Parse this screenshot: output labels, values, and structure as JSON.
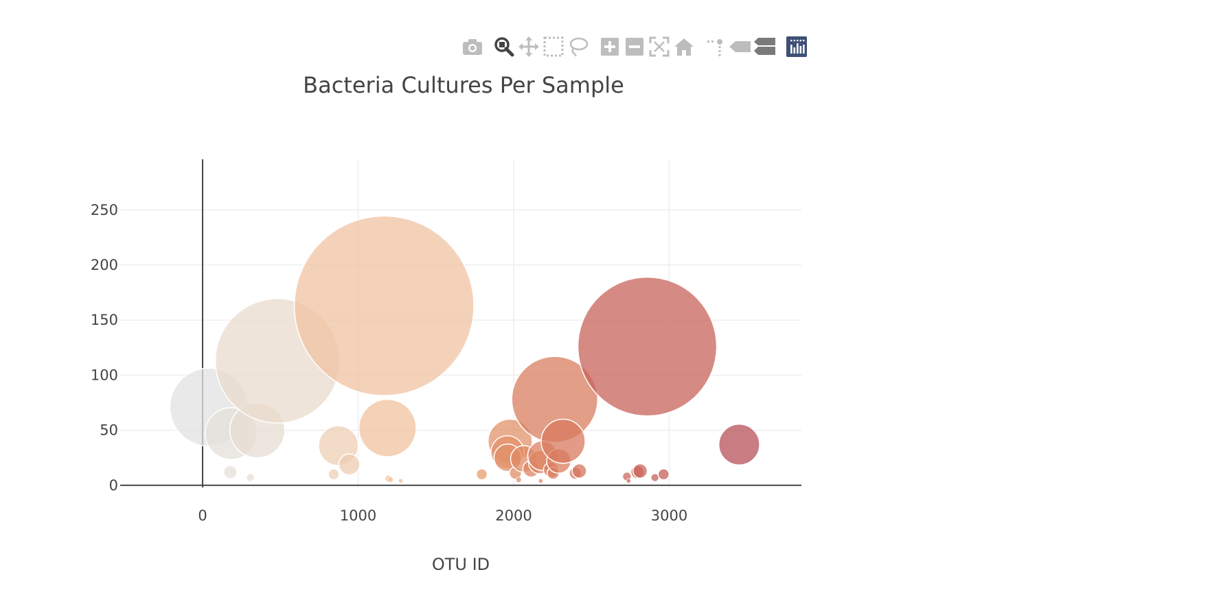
{
  "modebar": {
    "buttons": [
      {
        "name": "camera-icon",
        "label": "Download plot as a png"
      },
      {
        "name": "zoom-icon",
        "label": "Zoom"
      },
      {
        "name": "pan-icon",
        "label": "Pan"
      },
      {
        "name": "box-select-icon",
        "label": "Box Select"
      },
      {
        "name": "lasso-select-icon",
        "label": "Lasso Select"
      },
      {
        "name": "zoom-in-icon",
        "label": "Zoom in"
      },
      {
        "name": "zoom-out-icon",
        "label": "Zoom out"
      },
      {
        "name": "autoscale-icon",
        "label": "Autoscale"
      },
      {
        "name": "reset-axes-icon",
        "label": "Reset axes"
      },
      {
        "name": "spike-lines-icon",
        "label": "Toggle Spike Lines"
      },
      {
        "name": "hover-closest-icon",
        "label": "Show closest data on hover"
      },
      {
        "name": "hover-compare-icon",
        "label": "Compare data on hover"
      },
      {
        "name": "plotly-logo-icon",
        "label": "Produced with Plotly"
      }
    ],
    "colors": {
      "inactive": "#bdbdbd",
      "active": "#444444",
      "logo": "#3f4f75"
    }
  },
  "chart_data": {
    "type": "scatter",
    "subtype": "bubble",
    "title": "Bacteria Cultures Per Sample",
    "xlabel": "OTU ID",
    "ylabel": "",
    "xlim": [
      -530,
      3850
    ],
    "ylim": [
      -2,
      296
    ],
    "xticks": [
      0,
      1000,
      2000,
      3000
    ],
    "xtick_labels": [
      "0",
      "1000",
      "2000",
      "3000"
    ],
    "yticks": [
      0,
      50,
      100,
      150,
      200,
      250
    ],
    "ytick_labels": [
      "0",
      "50",
      "100",
      "150",
      "200",
      "250"
    ],
    "grid": true,
    "legend": "none",
    "colorscale": "Earth",
    "colorscale_stops": [
      "#e2e2e2",
      "#ecd9c6",
      "#f0c3a0",
      "#e8a070",
      "#d87a5e",
      "#c7625b",
      "#b8505a"
    ],
    "marker_opacity": 0.75,
    "marker_line_color": "#ffffff",
    "points": [
      {
        "x": 41,
        "y": 71
      },
      {
        "x": 178,
        "y": 12
      },
      {
        "x": 183,
        "y": 47
      },
      {
        "x": 307,
        "y": 7
      },
      {
        "x": 352,
        "y": 50
      },
      {
        "x": 482,
        "y": 113
      },
      {
        "x": 843,
        "y": 10
      },
      {
        "x": 873,
        "y": 36
      },
      {
        "x": 943,
        "y": 19
      },
      {
        "x": 1167,
        "y": 163
      },
      {
        "x": 1189,
        "y": 52
      },
      {
        "x": 1195,
        "y": 6
      },
      {
        "x": 1208,
        "y": 5
      },
      {
        "x": 1274,
        "y": 4
      },
      {
        "x": 1795,
        "y": 10
      },
      {
        "x": 1977,
        "y": 40
      },
      {
        "x": 1960,
        "y": 30
      },
      {
        "x": 1962,
        "y": 25
      },
      {
        "x": 2011,
        "y": 11
      },
      {
        "x": 2032,
        "y": 5
      },
      {
        "x": 2065,
        "y": 24
      },
      {
        "x": 2112,
        "y": 15
      },
      {
        "x": 2169,
        "y": 21
      },
      {
        "x": 2186,
        "y": 27
      },
      {
        "x": 2174,
        "y": 4
      },
      {
        "x": 2241,
        "y": 14
      },
      {
        "x": 2254,
        "y": 11
      },
      {
        "x": 2264,
        "y": 78
      },
      {
        "x": 2290,
        "y": 22
      },
      {
        "x": 2318,
        "y": 40
      },
      {
        "x": 2396,
        "y": 11
      },
      {
        "x": 2422,
        "y": 13
      },
      {
        "x": 2728,
        "y": 8
      },
      {
        "x": 2739,
        "y": 4
      },
      {
        "x": 2796,
        "y": 12
      },
      {
        "x": 2813,
        "y": 13
      },
      {
        "x": 2859,
        "y": 126
      },
      {
        "x": 2908,
        "y": 7
      },
      {
        "x": 2964,
        "y": 10
      },
      {
        "x": 3450,
        "y": 37
      }
    ]
  }
}
